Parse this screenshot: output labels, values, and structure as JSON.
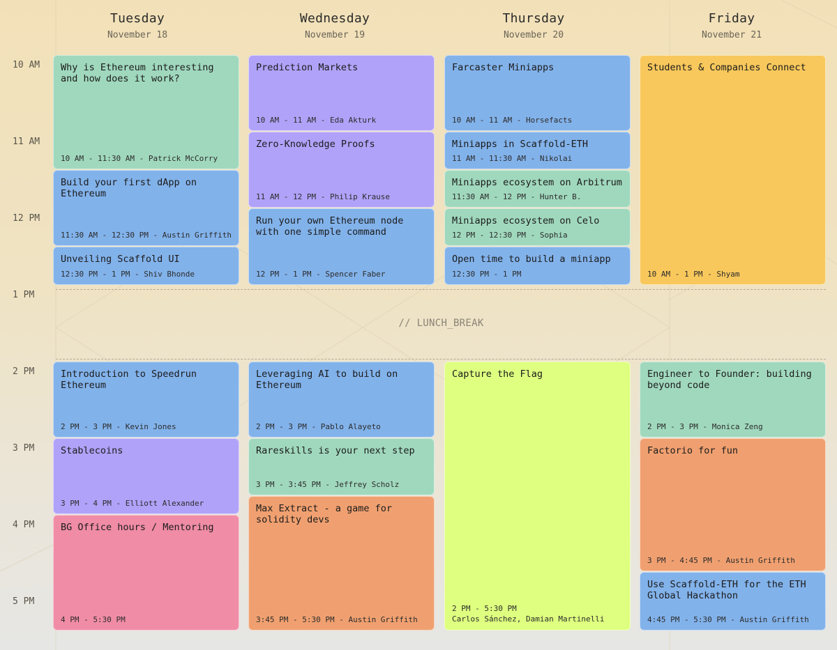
{
  "days": [
    {
      "name": "Tuesday",
      "date": "November 18"
    },
    {
      "name": "Wednesday",
      "date": "November 19"
    },
    {
      "name": "Thursday",
      "date": "November 20"
    },
    {
      "name": "Friday",
      "date": "November 21"
    }
  ],
  "times": [
    "10 AM",
    "11 AM",
    "12 PM",
    "1 PM",
    "2 PM",
    "3 PM",
    "4 PM",
    "5 PM"
  ],
  "lunch_label": "// LUNCH_BREAK",
  "colors": {
    "green": "#a0d8bd",
    "blue": "#82b2ea",
    "purple": "#b0a2f8",
    "orange": "#f0a070",
    "pink": "#f08ca6",
    "yellow": "#f8c85c",
    "lime": "#deff80"
  },
  "events": [
    {
      "title": "Why is Ethereum interesting and how does it work?",
      "meta": "10 AM - 11:30 AM - Patrick McCorry",
      "color": "green"
    },
    {
      "title": "Build your first dApp on Ethereum",
      "meta": "11:30 AM - 12:30 PM - Austin Griffith",
      "color": "blue"
    },
    {
      "title": "Unveiling Scaffold UI",
      "meta": "12:30 PM - 1 PM - Shiv Bhonde",
      "color": "blue"
    },
    {
      "title": "Prediction Markets",
      "meta": "10 AM - 11 AM - Eda Akturk",
      "color": "purple"
    },
    {
      "title": "Zero-Knowledge Proofs",
      "meta": "11 AM - 12 PM - Philip Krause",
      "color": "purple"
    },
    {
      "title": "Run your own Ethereum node with one simple command",
      "meta": "12 PM - 1 PM - Spencer Faber",
      "color": "blue"
    },
    {
      "title": "Farcaster Miniapps",
      "meta": "10 AM - 11 AM - Horsefacts",
      "color": "blue"
    },
    {
      "title": "Miniapps in Scaffold-ETH",
      "meta": "11 AM - 11:30 AM - Nikolai",
      "color": "blue"
    },
    {
      "title": "Miniapps ecosystem on Arbitrum",
      "meta": "11:30 AM - 12 PM - Hunter B.",
      "color": "green"
    },
    {
      "title": "Miniapps ecosystem on Celo",
      "meta": "12 PM - 12:30 PM - Sophia",
      "color": "green"
    },
    {
      "title": "Open time to build a miniapp",
      "meta": "12:30 PM - 1 PM",
      "color": "blue"
    },
    {
      "title": "Students & Companies Connect",
      "meta": "10 AM - 1 PM - Shyam",
      "color": "yellow"
    },
    {
      "title": "Introduction to Speedrun Ethereum",
      "meta": "2 PM - 3 PM - Kevin Jones",
      "color": "blue"
    },
    {
      "title": "Stablecoins",
      "meta": "3 PM - 4 PM - Elliott Alexander",
      "color": "purple"
    },
    {
      "title": "BG Office hours / Mentoring",
      "meta": "4 PM - 5:30 PM",
      "color": "pink"
    },
    {
      "title": "Leveraging AI to build on Ethereum",
      "meta": "2 PM - 3 PM - Pablo Alayeto",
      "color": "blue"
    },
    {
      "title": "Rareskills is your next step",
      "meta": "3 PM - 3:45 PM - Jeffrey Scholz",
      "color": "green"
    },
    {
      "title": "Max Extract - a game for solidity devs",
      "meta": "3:45 PM - 5:30 PM - Austin Griffith",
      "color": "orange"
    },
    {
      "title": "Capture the Flag",
      "meta": "2 PM - 5:30 PM",
      "meta2": "Carlos Sánchez, Damian Martinelli",
      "color": "lime"
    },
    {
      "title": "Engineer to Founder: building beyond code",
      "meta": "2 PM - 3 PM - Monica Zeng",
      "color": "green"
    },
    {
      "title": "Factorio for fun",
      "meta": "3 PM - 4:45 PM - Austin Griffith",
      "color": "orange"
    },
    {
      "title": "Use Scaffold-ETH for the ETH Global Hackathon",
      "meta": "4:45 PM - 5:30 PM - Austin Griffith",
      "color": "blue"
    }
  ]
}
